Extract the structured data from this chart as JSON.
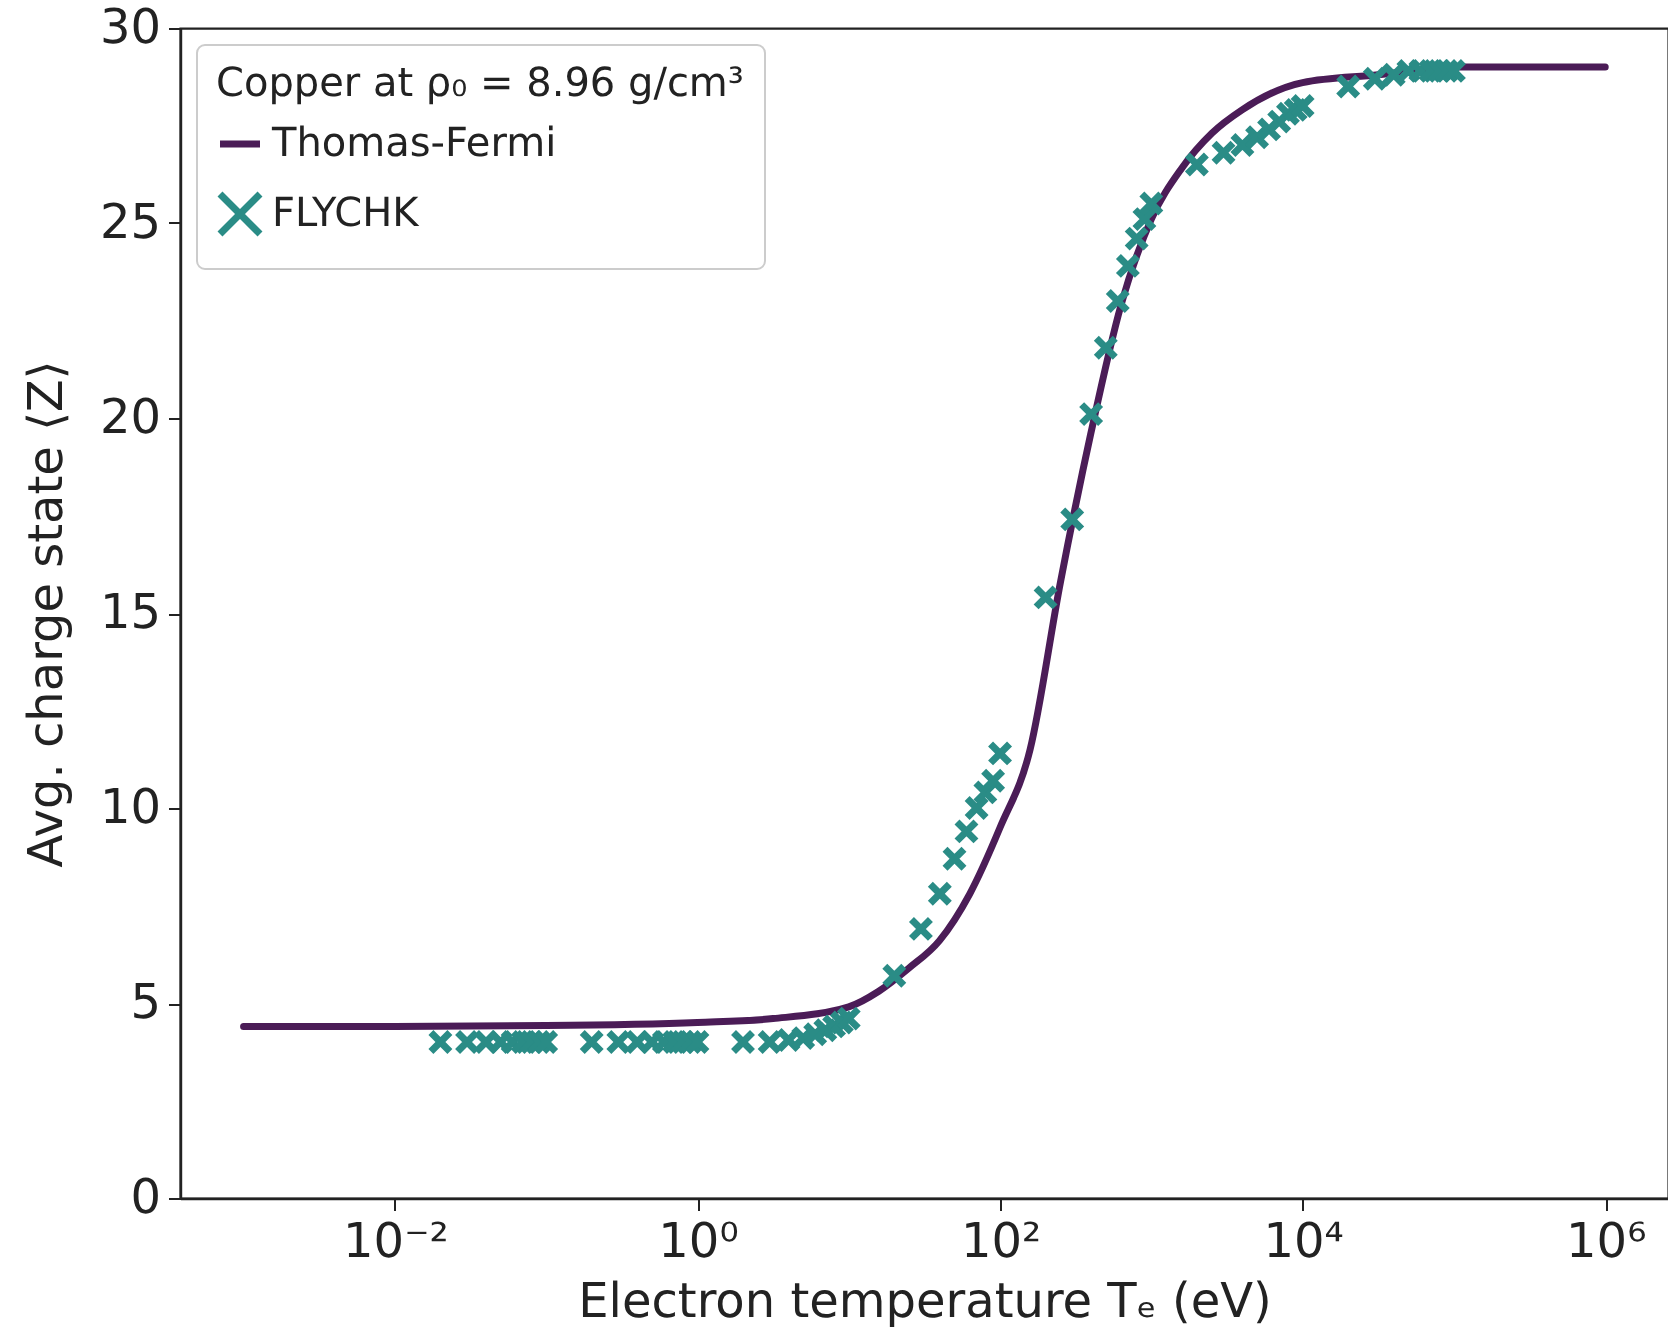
{
  "chart_data": {
    "type": "line",
    "xlabel": "Electron temperature Tₑ  (eV)",
    "ylabel": "Avg. charge state ⟨Z⟩",
    "legend_title": "Copper at ρ₀ = 8.96 g/cm³",
    "log": "x",
    "grid": false,
    "legend": "top left",
    "xlim": [
      0.00038,
      2600000
    ],
    "xticks": [
      {
        "value": 0.01,
        "label": "10⁻²"
      },
      {
        "value": 1,
        "label": "10⁰"
      },
      {
        "value": 100,
        "label": "10²"
      },
      {
        "value": 10000,
        "label": "10⁴"
      },
      {
        "value": 1000000,
        "label": "10⁶"
      }
    ],
    "ylim": [
      0,
      30
    ],
    "yticks": [
      0,
      5,
      10,
      15,
      20,
      25,
      30
    ],
    "series": [
      {
        "name": "Thomas-Fermi",
        "color": "#4b1c57",
        "line_style": "solid",
        "marker": "none",
        "x": [
          0.001,
          0.01,
          0.1,
          1,
          3.16,
          10,
          15.8,
          25.1,
          39.8,
          63.1,
          100,
          158,
          251,
          398,
          631,
          1000,
          1585,
          2512,
          3981,
          10000,
          31623,
          100000,
          1000000
        ],
        "values": [
          4.4,
          4.4,
          4.42,
          4.5,
          4.6,
          4.9,
          5.3,
          5.9,
          6.6,
          7.8,
          9.5,
          11.5,
          15.8,
          19.6,
          22.9,
          25.1,
          26.4,
          27.3,
          27.9,
          28.6,
          28.8,
          29.0,
          29.0
        ]
      },
      {
        "name": "FLYCHK",
        "type": "scatter",
        "color": "#2a8c86",
        "marker": "cross",
        "x": [
          0.02,
          0.03,
          0.04,
          0.05,
          0.06,
          0.07,
          0.08,
          0.09,
          0.1,
          0.2,
          0.3,
          0.4,
          0.5,
          0.6,
          0.7,
          0.8,
          0.9,
          1,
          2,
          3,
          4,
          5,
          6,
          7,
          8,
          9,
          10,
          20,
          30,
          40,
          50,
          60,
          70,
          80,
          90,
          100,
          200,
          300,
          400,
          500,
          600,
          700,
          800,
          900,
          1000,
          2000,
          3000,
          4000,
          5000,
          6000,
          7000,
          8000,
          9000,
          10000,
          20000,
          30000,
          40000,
          50000,
          60000,
          70000,
          80000,
          90000,
          100000
        ],
        "values": [
          4.0,
          4.0,
          4.0,
          4.0,
          4.0,
          4.0,
          4.0,
          4.0,
          4.0,
          4.0,
          4.0,
          4.0,
          4.0,
          4.0,
          4.0,
          4.0,
          4.0,
          4.0,
          4.0,
          4.0,
          4.05,
          4.1,
          4.2,
          4.3,
          4.4,
          4.5,
          4.6,
          5.7,
          6.9,
          7.8,
          8.7,
          9.4,
          10.0,
          10.4,
          10.7,
          11.4,
          15.4,
          17.4,
          20.1,
          21.8,
          23.0,
          23.9,
          24.6,
          25.1,
          25.5,
          26.5,
          26.8,
          27.0,
          27.2,
          27.4,
          27.6,
          27.8,
          27.9,
          28.0,
          28.5,
          28.7,
          28.8,
          28.9,
          28.9,
          28.9,
          28.9,
          28.9,
          28.9
        ]
      }
    ]
  }
}
